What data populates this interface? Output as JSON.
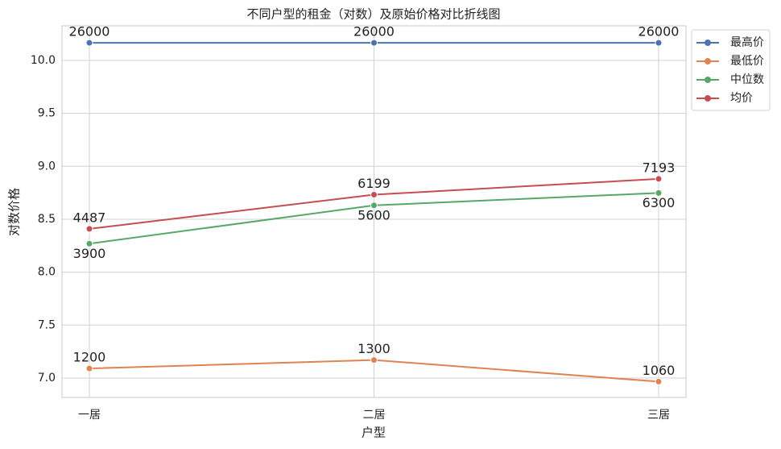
{
  "chart_data": {
    "type": "line",
    "title": "不同户型的租金（对数）及原始价格对比折线图",
    "x_label": "户型",
    "y_label": "对数价格",
    "categories": [
      "一居",
      "二居",
      "三居"
    ],
    "series": [
      {
        "name": "最高价",
        "color": "#4c72b0",
        "values": [
          10.166,
          10.166,
          10.166
        ],
        "prices": [
          26000,
          26000,
          26000
        ]
      },
      {
        "name": "最低价",
        "color": "#dd8452",
        "values": [
          7.09,
          7.17,
          6.966
        ],
        "prices": [
          1200,
          1300,
          1060
        ]
      },
      {
        "name": "中位数",
        "color": "#55a868",
        "values": [
          8.269,
          8.631,
          8.748
        ],
        "prices": [
          3900,
          5600,
          6300
        ]
      },
      {
        "name": "均价",
        "color": "#c44e52",
        "values": [
          8.409,
          8.732,
          8.881
        ],
        "prices": [
          4487,
          6199,
          7193
        ]
      }
    ],
    "ylim": [
      6.817,
      10.327
    ],
    "yticks": [
      {
        "value": 7,
        "label": "7.0"
      },
      7.5,
      {
        "value": 8,
        "label": "8.0"
      },
      8.5,
      {
        "value": 9,
        "label": "9.0"
      },
      9.5,
      {
        "value": 10,
        "label": "10.0"
      }
    ],
    "grid": true,
    "legend": "outside-upper-right"
  }
}
